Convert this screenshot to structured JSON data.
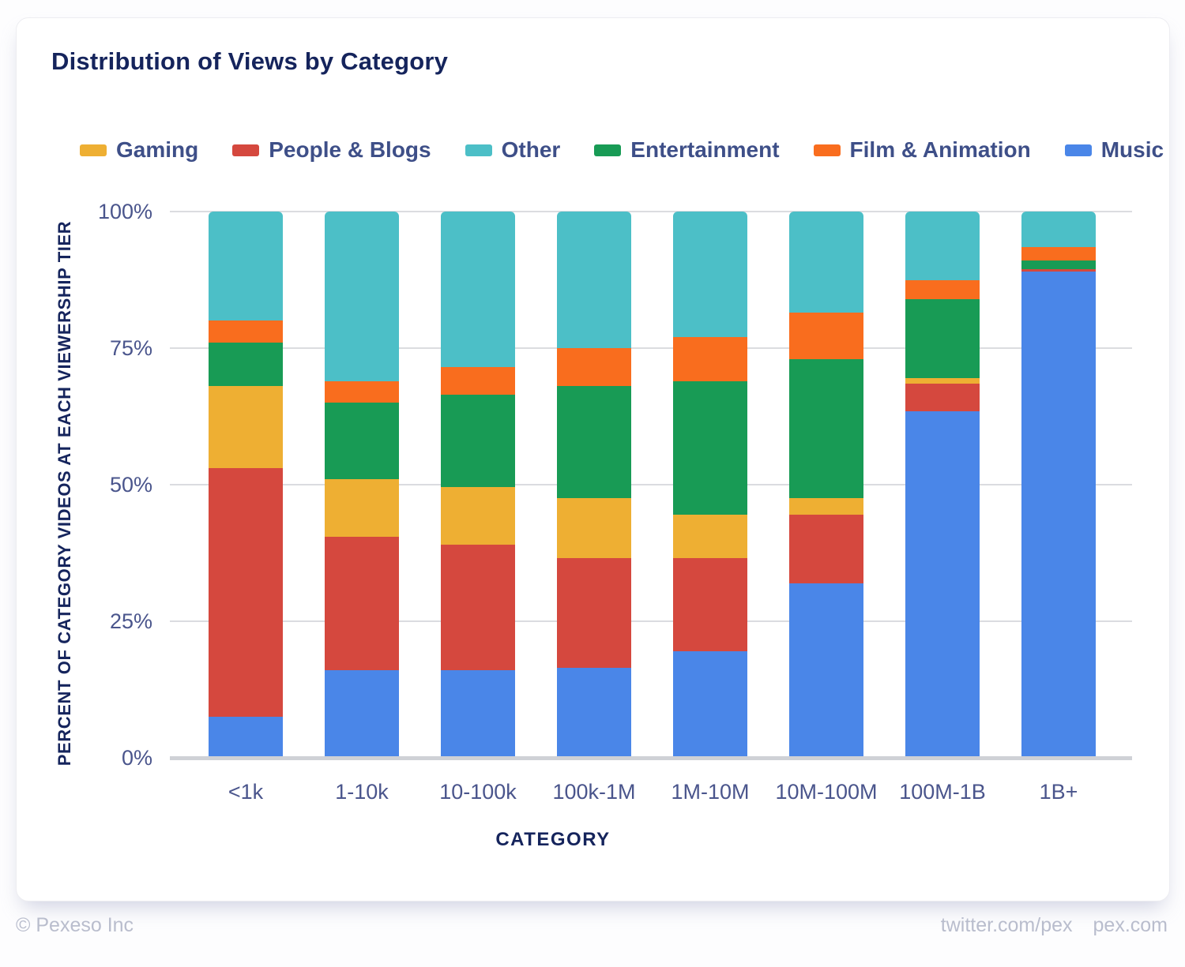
{
  "title": "Distribution of Views by Category",
  "legend_order": [
    "Gaming",
    "People & Blogs",
    "Other",
    "Entertainment",
    "Film & Animation",
    "Music"
  ],
  "chart_data": {
    "type": "bar",
    "stacked": true,
    "title": "Distribution of Views by Category",
    "xlabel": "CATEGORY",
    "ylabel": "PERCENT OF CATEGORY VIDEOS AT EACH VIEWERSHIP TIER",
    "categories": [
      "<1k",
      "1-10k",
      "10-100k",
      "100k-1M",
      "1M-10M",
      "10M-100M",
      "100M-1B",
      "1B+"
    ],
    "stack_order": "bottom_to_top",
    "series": [
      {
        "name": "Music",
        "color": "#4a86e8",
        "values": [
          7.5,
          16,
          16,
          16.5,
          19.5,
          32,
          63.5,
          89
        ]
      },
      {
        "name": "People & Blogs",
        "color": "#d5483e",
        "values": [
          45.5,
          24.5,
          23,
          20,
          17,
          12.5,
          5,
          0.5
        ]
      },
      {
        "name": "Gaming",
        "color": "#eeaf33",
        "values": [
          15,
          10.5,
          10.5,
          11,
          8,
          3,
          1,
          0
        ]
      },
      {
        "name": "Entertainment",
        "color": "#189b55",
        "values": [
          8,
          14,
          17,
          20.5,
          24.5,
          25.5,
          14.5,
          1.5
        ]
      },
      {
        "name": "Film & Animation",
        "color": "#f96d1e",
        "values": [
          4,
          4,
          5,
          7,
          8,
          8.5,
          3.5,
          2.5
        ]
      },
      {
        "name": "Other",
        "color": "#4cbfc7",
        "values": [
          20,
          31,
          28.5,
          25,
          23,
          18.5,
          12.5,
          6.5
        ]
      }
    ],
    "yticks": [
      "0%",
      "25%",
      "50%",
      "75%",
      "100%"
    ],
    "ylim": [
      0,
      100
    ],
    "grid": "horizontal",
    "legend_position": "top"
  },
  "footer": {
    "left": "© Pexeso Inc",
    "links": [
      "twitter.com/pex",
      "pex.com"
    ]
  }
}
